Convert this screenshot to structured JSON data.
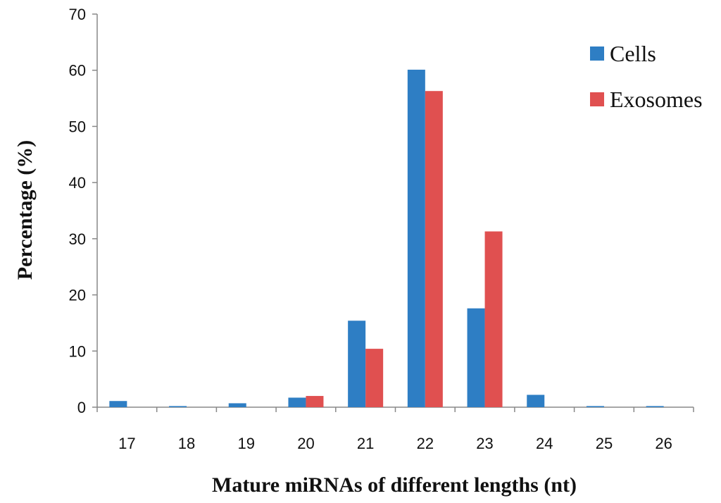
{
  "chart_data": {
    "type": "bar",
    "title": "",
    "xlabel": "Mature miRNAs of different lengths (nt)",
    "ylabel": "Percentage (%)",
    "ylim": [
      0,
      70
    ],
    "yticks": [
      0,
      10,
      20,
      30,
      40,
      50,
      60,
      70
    ],
    "grid": false,
    "legend_position": "top-right",
    "categories": [
      "17",
      "18",
      "19",
      "20",
      "21",
      "22",
      "23",
      "24",
      "25",
      "26"
    ],
    "series": [
      {
        "name": "Cells",
        "color": "#2E7EC4",
        "values": [
          1.1,
          0.2,
          0.7,
          1.7,
          15.4,
          60.1,
          17.6,
          2.2,
          0.2,
          0.2
        ]
      },
      {
        "name": "Exosomes",
        "color": "#E05050",
        "values": [
          0,
          0,
          0,
          2.0,
          10.4,
          56.3,
          31.3,
          0,
          0,
          0
        ]
      }
    ]
  }
}
